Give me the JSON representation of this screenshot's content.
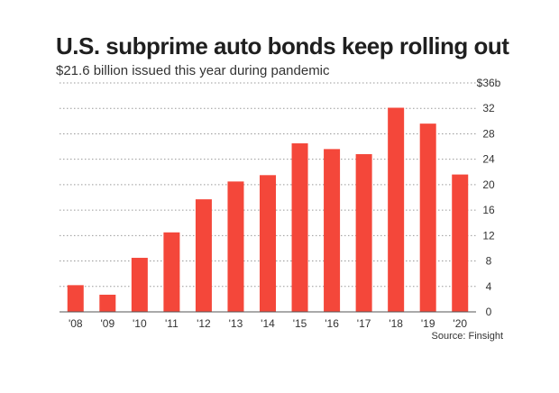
{
  "title": "U.S. subprime auto bonds keep rolling out",
  "subtitle": "$21.6 billion issued this year during pandemic",
  "source": "Source: Finsight",
  "colors": {
    "bar": "#f4473a",
    "grid": "#9a9a9a",
    "axis": "#555555"
  },
  "chart_data": {
    "type": "bar",
    "title": "U.S. subprime auto bonds keep rolling out",
    "subtitle": "$21.6 billion issued this year during pandemic",
    "xlabel": "",
    "ylabel": "",
    "categories": [
      "'08",
      "'09",
      "'10",
      "'11",
      "'12",
      "'13",
      "'14",
      "'15",
      "'16",
      "'17",
      "'18",
      "'19",
      "'20"
    ],
    "values": [
      4.2,
      2.7,
      8.5,
      12.5,
      17.7,
      20.5,
      21.5,
      26.5,
      25.6,
      24.8,
      32.1,
      29.6,
      21.6
    ],
    "ylim": [
      0,
      36
    ],
    "yticks": [
      0,
      4,
      8,
      12,
      16,
      20,
      24,
      28,
      32,
      36
    ],
    "ytick_labels": [
      "0",
      "4",
      "8",
      "12",
      "16",
      "20",
      "24",
      "28",
      "32",
      "$36b"
    ],
    "grid": true,
    "axis_position": "right",
    "legend": false
  }
}
